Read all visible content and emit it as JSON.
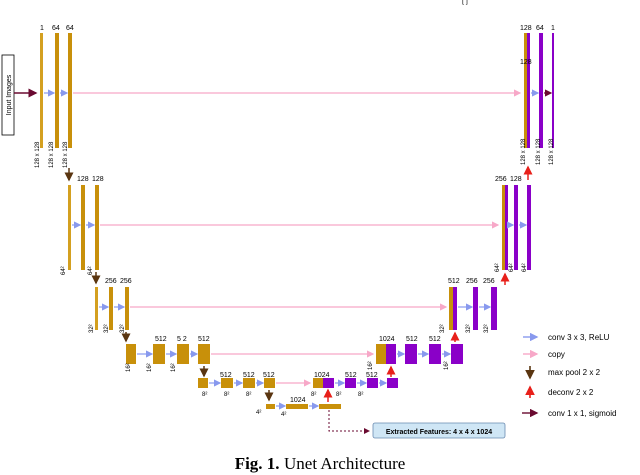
{
  "input_label": "Input Images",
  "top_cut_text": "[ ]",
  "caption": {
    "label": "Fig. 1.",
    "text": "Unet Architecture"
  },
  "extracted": "Extracted Features: 4 x 4 x 1024",
  "legend": [
    {
      "label": "conv 3 x 3, ReLU",
      "color": "#8899ee"
    },
    {
      "label": "copy",
      "color": "#f7a8c8"
    },
    {
      "label": "max pool 2 x 2",
      "color": "#5a3510"
    },
    {
      "label": "deconv 2 x 2",
      "color": "#e8201a"
    },
    {
      "label": "conv 1 x 1, sigmoid",
      "color": "#6a0a30"
    }
  ],
  "encoder": {
    "l1": {
      "c": [
        "1",
        "64",
        "64"
      ],
      "s": [
        "128 x 128",
        "128 x 128",
        "128 x 128"
      ]
    },
    "l2": {
      "c": [
        "128",
        "128"
      ],
      "s": [
        "64²",
        "64²"
      ]
    },
    "l3": {
      "c": [
        "256",
        "256"
      ],
      "s": [
        "32²",
        "32²",
        "32²"
      ]
    },
    "l4": {
      "c": [
        "512",
        "5 2",
        "512"
      ],
      "s": [
        "16²",
        "16²",
        "16²"
      ]
    },
    "l5": {
      "c": [
        "512",
        "512",
        "512"
      ],
      "s": [
        "8²",
        "8²",
        "8²"
      ]
    },
    "bottom": {
      "c": "1024",
      "s": [
        "4²",
        "4²"
      ]
    }
  },
  "decoder": {
    "l5": {
      "c": [
        "1024",
        "512",
        "512"
      ],
      "s": [
        "8²",
        "8²",
        "8²"
      ]
    },
    "l4": {
      "c": [
        "1024",
        "512",
        "512"
      ],
      "s": [
        "16²",
        "16²"
      ]
    },
    "l3": {
      "c": [
        "512",
        "256",
        "256"
      ],
      "s": [
        "32²",
        "32²",
        "32²"
      ]
    },
    "l2": {
      "c": [
        "256",
        "128"
      ],
      "s": [
        "64²",
        "64²",
        "64²"
      ]
    },
    "l1": {
      "c": [
        "128",
        "64",
        "1",
        "128"
      ],
      "s": [
        "128 x 128",
        "128 x 128",
        "128 x 128"
      ]
    }
  }
}
